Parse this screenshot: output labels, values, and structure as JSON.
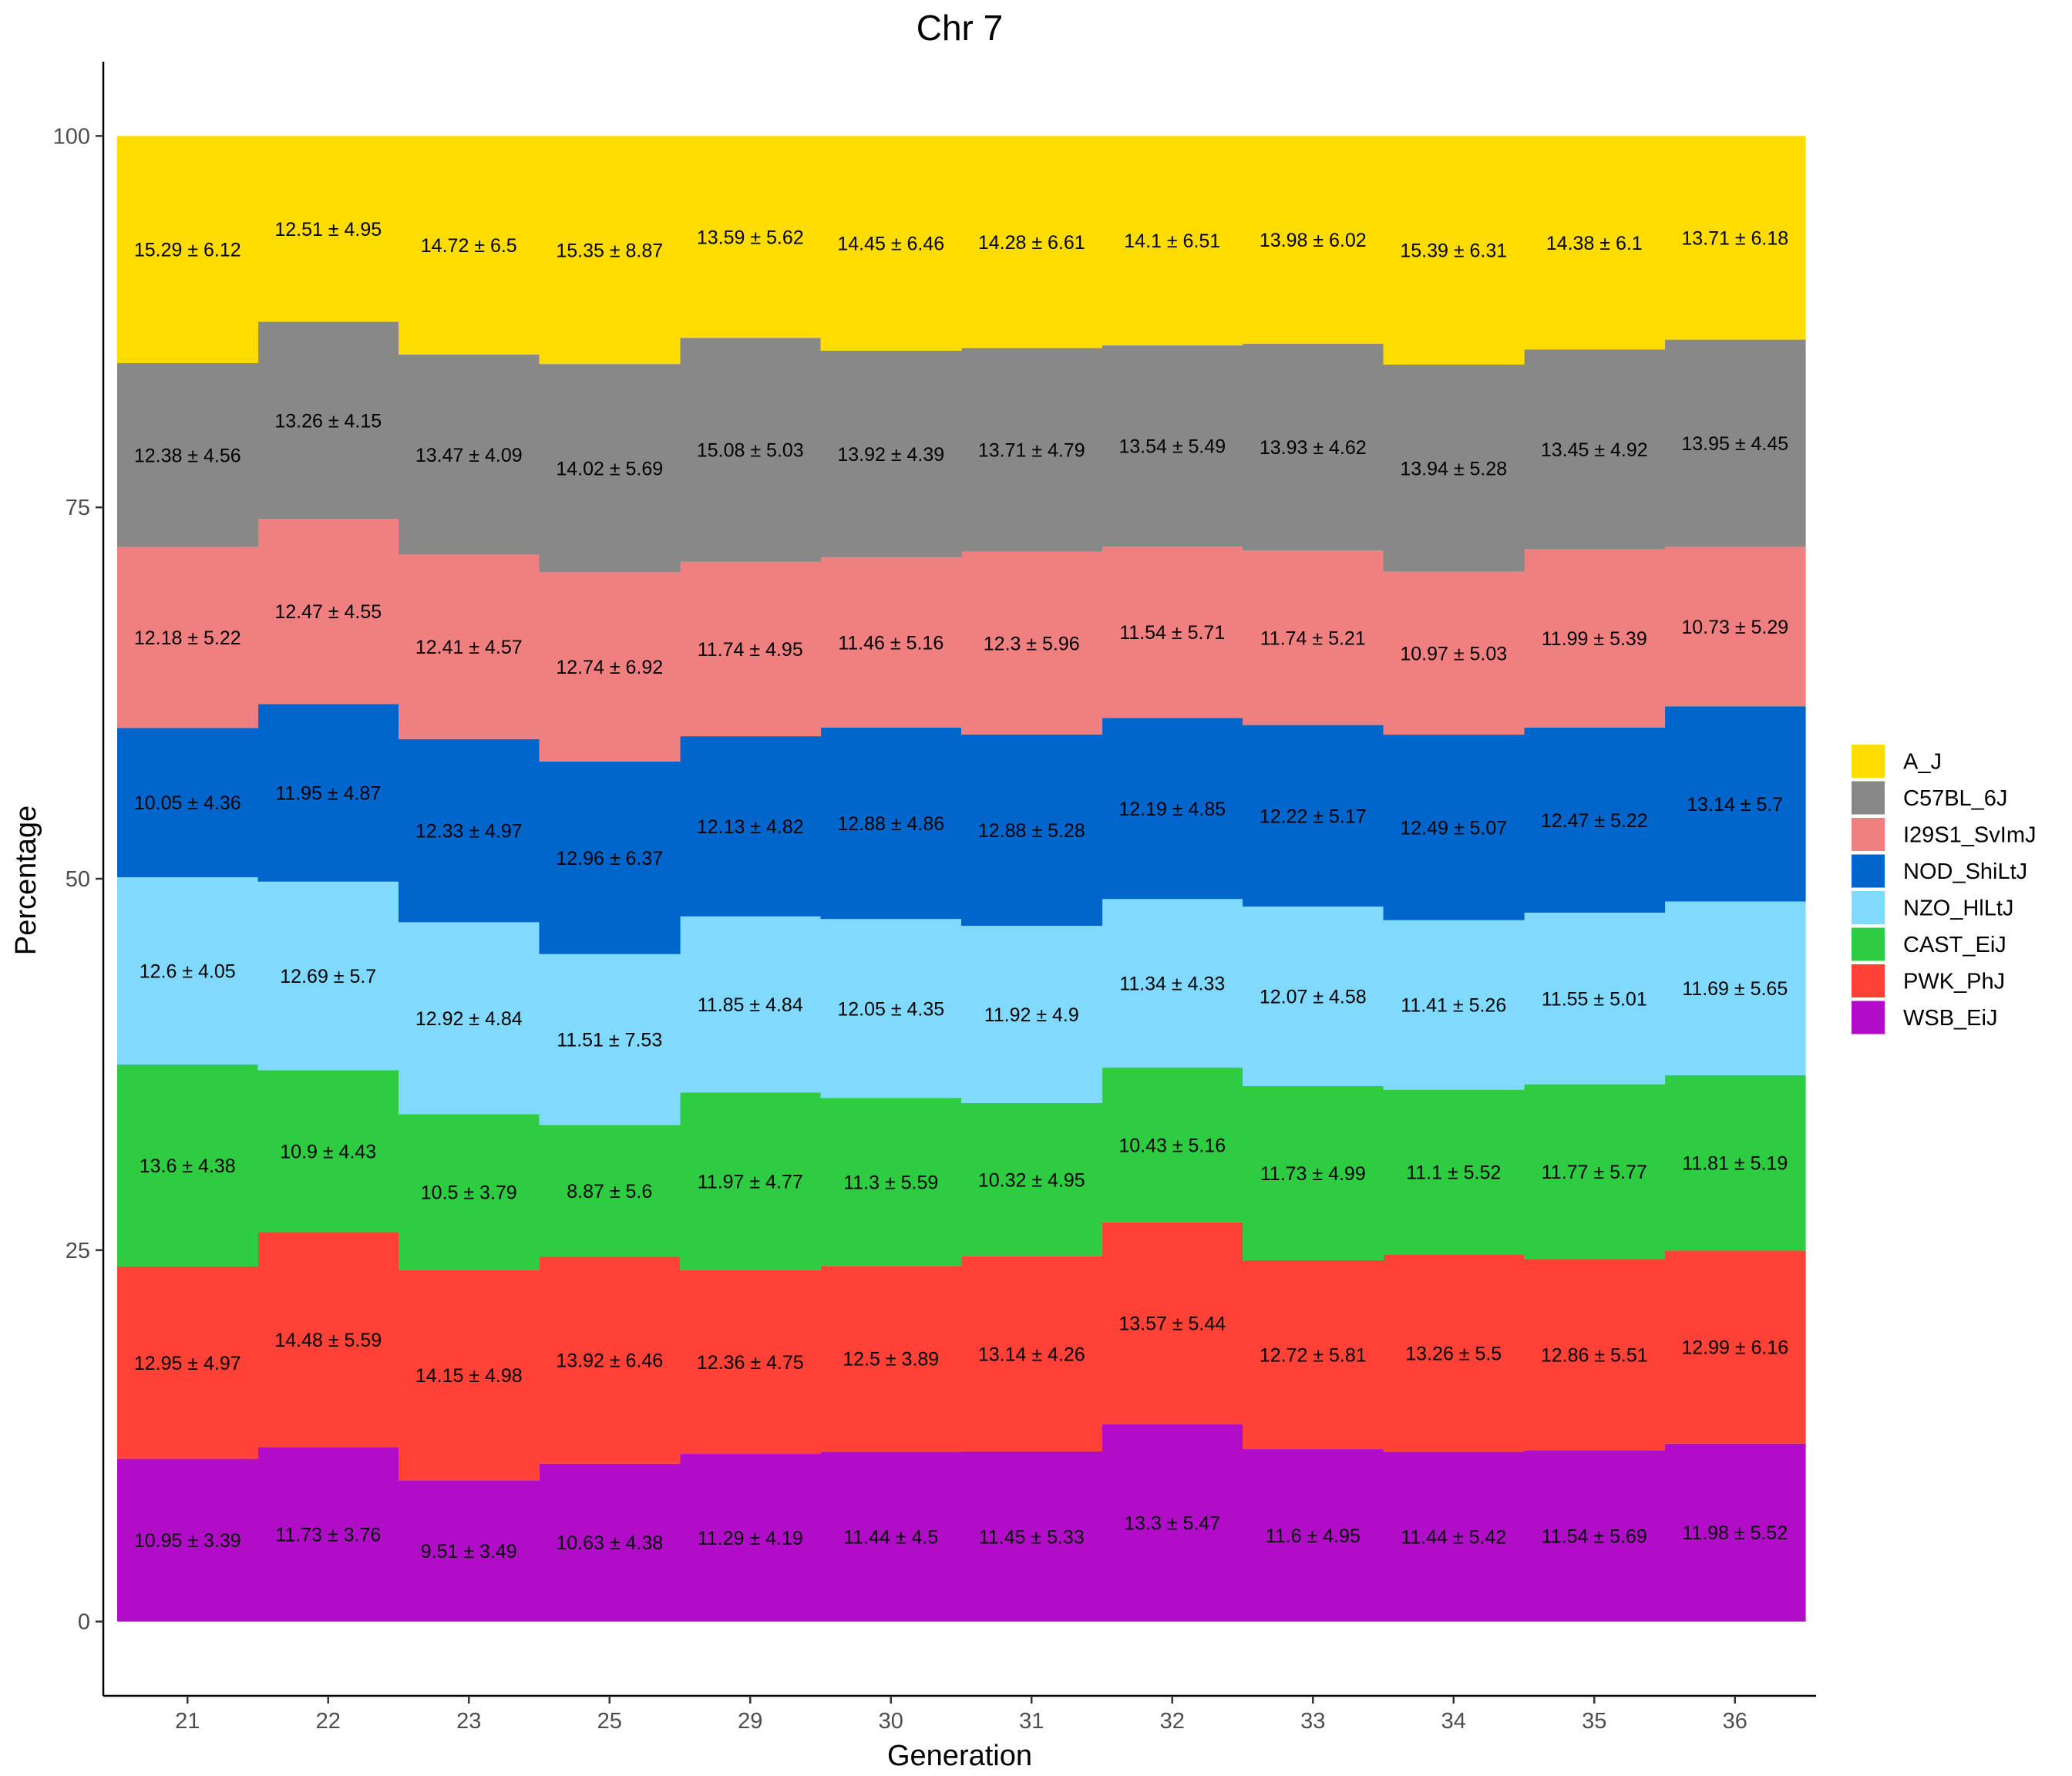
{
  "chart_data": {
    "type": "area",
    "stacked": true,
    "step": true,
    "title": "Chr 7",
    "xlabel": "Generation",
    "ylabel": "Percentage",
    "ylim": [
      -5,
      105
    ],
    "yticks": [
      0,
      25,
      50,
      75,
      100
    ],
    "grid": false,
    "legend_position": "right",
    "categories": [
      "21",
      "22",
      "23",
      "25",
      "29",
      "30",
      "31",
      "32",
      "33",
      "34",
      "35",
      "36"
    ],
    "series": [
      {
        "name": "WSB_EiJ",
        "color": "#B10DC9",
        "values": [
          10.95,
          11.73,
          9.51,
          10.63,
          11.29,
          11.44,
          11.45,
          13.3,
          11.6,
          11.44,
          11.54,
          11.98
        ],
        "labels": [
          "10.95 ± 3.39",
          "11.73 ± 3.76",
          "9.51 ± 3.49",
          "10.63 ± 4.38",
          "11.29 ± 4.19",
          "11.44 ± 4.5",
          "11.45 ± 5.33",
          "13.3 ± 5.47",
          "11.6 ± 4.95",
          "11.44 ± 5.42",
          "11.54 ± 5.69",
          "11.98 ± 5.52"
        ]
      },
      {
        "name": "PWK_PhJ",
        "color": "#FF4136",
        "values": [
          12.95,
          14.48,
          14.15,
          13.92,
          12.36,
          12.5,
          13.14,
          13.57,
          12.72,
          13.26,
          12.86,
          12.99
        ],
        "labels": [
          "12.95 ± 4.97",
          "14.48 ± 5.59",
          "14.15 ± 4.98",
          "13.92 ± 6.46",
          "12.36 ± 4.75",
          "12.5 ± 3.89",
          "13.14 ± 4.26",
          "13.57 ± 5.44",
          "12.72 ± 5.81",
          "13.26 ± 5.5",
          "12.86 ± 5.51",
          "12.99 ± 6.16"
        ]
      },
      {
        "name": "CAST_EiJ",
        "color": "#2ECC40",
        "values": [
          13.6,
          10.9,
          10.5,
          8.87,
          11.97,
          11.3,
          10.32,
          10.43,
          11.73,
          11.1,
          11.77,
          11.81
        ],
        "labels": [
          "13.6 ± 4.38",
          "10.9 ± 4.43",
          "10.5 ± 3.79",
          "8.87 ± 5.6",
          "11.97 ± 4.77",
          "11.3 ± 5.59",
          "10.32 ± 4.95",
          "10.43 ± 5.16",
          "11.73 ± 4.99",
          "11.1 ± 5.52",
          "11.77 ± 5.77",
          "11.81 ± 5.19"
        ]
      },
      {
        "name": "NZO_HlLtJ",
        "color": "#80D9FF",
        "values": [
          12.6,
          12.69,
          12.92,
          11.51,
          11.85,
          12.05,
          11.92,
          11.34,
          12.07,
          11.41,
          11.55,
          11.69
        ],
        "labels": [
          "12.6 ± 4.05",
          "12.69 ± 5.7",
          "12.92 ± 4.84",
          "11.51 ± 7.53",
          "11.85 ± 4.84",
          "12.05 ± 4.35",
          "11.92 ± 4.9",
          "11.34 ± 4.33",
          "12.07 ± 4.58",
          "11.41 ± 5.26",
          "11.55 ± 5.01",
          "11.69 ± 5.65"
        ]
      },
      {
        "name": "NOD_ShiLtJ",
        "color": "#0066CC",
        "values": [
          10.05,
          11.95,
          12.33,
          12.96,
          12.13,
          12.88,
          12.88,
          12.19,
          12.22,
          12.49,
          12.47,
          13.14
        ],
        "labels": [
          "10.05 ± 4.36",
          "11.95 ± 4.87",
          "12.33 ± 4.97",
          "12.96 ± 6.37",
          "12.13 ± 4.82",
          "12.88 ± 4.86",
          "12.88 ± 5.28",
          "12.19 ± 4.85",
          "12.22 ± 5.17",
          "12.49 ± 5.07",
          "12.47 ± 5.22",
          "13.14 ± 5.7"
        ]
      },
      {
        "name": "I29S1_SvImJ",
        "color": "#F08080",
        "values": [
          12.18,
          12.47,
          12.41,
          12.74,
          11.74,
          11.46,
          12.3,
          11.54,
          11.74,
          10.97,
          11.99,
          10.73
        ],
        "labels": [
          "12.18 ± 5.22",
          "12.47 ± 4.55",
          "12.41 ± 4.57",
          "12.74 ± 6.92",
          "11.74 ± 4.95",
          "11.46 ± 5.16",
          "12.3 ± 5.96",
          "11.54 ± 5.71",
          "11.74 ± 5.21",
          "10.97 ± 5.03",
          "11.99 ± 5.39",
          "10.73 ± 5.29"
        ]
      },
      {
        "name": "C57BL_6J",
        "color": "#888888",
        "values": [
          12.38,
          13.26,
          13.47,
          14.02,
          15.08,
          13.92,
          13.71,
          13.54,
          13.93,
          13.94,
          13.45,
          13.95
        ],
        "labels": [
          "12.38 ± 4.56",
          "13.26 ± 4.15",
          "13.47 ± 4.09",
          "14.02 ± 5.69",
          "15.08 ± 5.03",
          "13.92 ± 4.39",
          "13.71 ± 4.79",
          "13.54 ± 5.49",
          "13.93 ± 4.62",
          "13.94 ± 5.28",
          "13.45 ± 4.92",
          "13.95 ± 4.45"
        ]
      },
      {
        "name": "A_J",
        "color": "#FFDC00",
        "values": [
          15.29,
          12.51,
          14.72,
          15.35,
          13.59,
          14.45,
          14.28,
          14.1,
          13.98,
          15.39,
          14.38,
          13.71
        ],
        "labels": [
          "15.29 ± 6.12",
          "12.51 ± 4.95",
          "14.72 ± 6.5",
          "15.35 ± 8.87",
          "13.59 ± 5.62",
          "14.45 ± 6.46",
          "14.28 ± 6.61",
          "14.1 ± 6.51",
          "13.98 ± 6.02",
          "15.39 ± 6.31",
          "14.38 ± 6.1",
          "13.71 ± 6.18"
        ]
      }
    ],
    "legend_order": [
      "A_J",
      "C57BL_6J",
      "I29S1_SvImJ",
      "NOD_ShiLtJ",
      "NZO_HlLtJ",
      "CAST_EiJ",
      "PWK_PhJ",
      "WSB_EiJ"
    ]
  }
}
